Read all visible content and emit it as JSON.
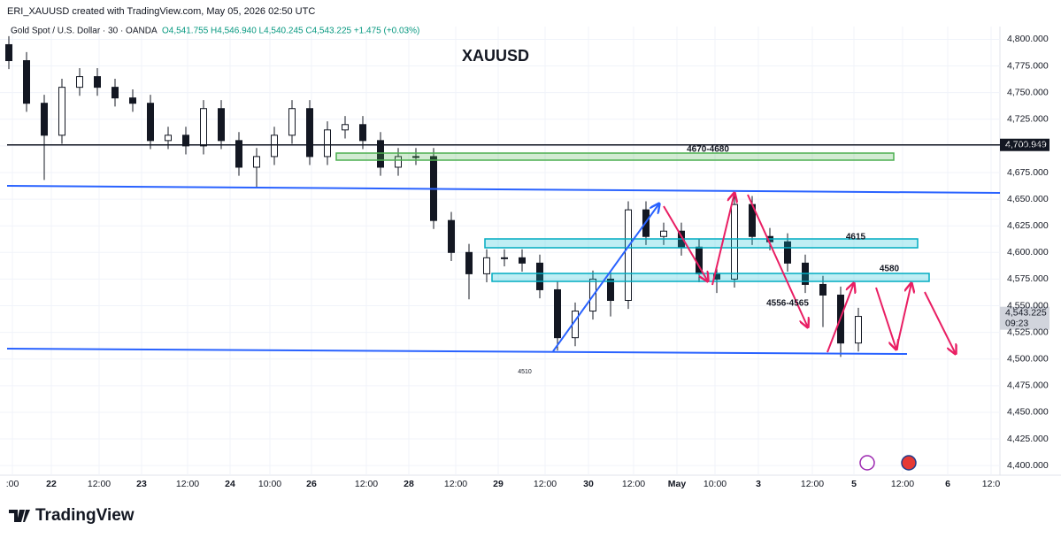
{
  "chart_data": {
    "type": "candlestick",
    "title": "XAUUSD",
    "caption": "ERI_XAUUSD created with TradingView.com, May 05, 2026 02:50 UTC",
    "symbol": "Gold Spot / U.S. Dollar · 30 · OANDA",
    "ohlc_legend": "O4,541.755 H4,546.940 L4,540.245 C4,543.225 +1.475 (+0.03%)",
    "brand": "TradingView",
    "annotations": [
      "4670-4680",
      "4615",
      "4580",
      "4556-4565",
      "4510"
    ],
    "x": [
      1,
      3,
      5,
      7,
      9,
      11,
      13,
      15,
      17,
      19,
      21,
      23,
      25,
      27,
      29,
      31,
      33,
      35,
      37,
      39,
      41,
      43,
      45,
      47,
      49,
      51,
      53,
      55,
      57,
      59,
      61,
      63,
      65,
      67,
      69,
      71,
      73,
      75,
      77,
      79,
      81,
      83,
      85,
      87,
      89,
      91,
      93,
      95,
      97
    ],
    "open": [
      4795,
      4780,
      4740,
      4710,
      4755,
      4765,
      4755,
      4745,
      4740,
      4705,
      4710,
      4700,
      4735,
      4705,
      4680,
      4690,
      4710,
      4735,
      4690,
      4715,
      4720,
      4705,
      4680,
      4690,
      4690,
      4630,
      4600,
      4580,
      4595,
      4595,
      4590,
      4565,
      4520,
      4545,
      4575,
      4555,
      4640,
      4615,
      4620,
      4605,
      4580,
      4575,
      4645,
      4615,
      4610,
      4590,
      4570,
      4560,
      4515
    ],
    "high": [
      4803,
      4788,
      4748,
      4763,
      4773,
      4773,
      4763,
      4753,
      4748,
      4718,
      4718,
      4743,
      4743,
      4713,
      4698,
      4718,
      4743,
      4743,
      4723,
      4728,
      4728,
      4713,
      4698,
      4698,
      4698,
      4638,
      4608,
      4603,
      4603,
      4603,
      4598,
      4573,
      4553,
      4583,
      4583,
      4648,
      4648,
      4628,
      4628,
      4613,
      4588,
      4653,
      4653,
      4623,
      4618,
      4598,
      4578,
      4568,
      4548
    ],
    "low": [
      4772,
      4732,
      4668,
      4702,
      4747,
      4747,
      4737,
      4732,
      4697,
      4697,
      4692,
      4692,
      4697,
      4672,
      4660,
      4682,
      4702,
      4682,
      4682,
      4707,
      4697,
      4672,
      4672,
      4682,
      4622,
      4592,
      4556,
      4572,
      4587,
      4582,
      4557,
      4508,
      4512,
      4537,
      4540,
      4547,
      4607,
      4607,
      4597,
      4572,
      4562,
      4567,
      4607,
      4602,
      4582,
      4562,
      4530,
      4502,
      4507
    ],
    "close": [
      4780,
      4740,
      4710,
      4755,
      4765,
      4755,
      4745,
      4740,
      4705,
      4710,
      4700,
      4735,
      4705,
      4680,
      4690,
      4710,
      4735,
      4690,
      4715,
      4720,
      4705,
      4680,
      4690,
      4690,
      4630,
      4600,
      4580,
      4595,
      4595,
      4590,
      4565,
      4520,
      4545,
      4575,
      4555,
      4640,
      4615,
      4620,
      4605,
      4580,
      4575,
      4645,
      4615,
      4610,
      4590,
      4570,
      4560,
      4515,
      4540
    ],
    "up_color": "#ffffff",
    "down_color": "#131722",
    "xlim": [
      0,
      113
    ],
    "ylim": [
      4391,
      4812
    ],
    "grid": true,
    "xticks": [
      {
        "value": 1.4,
        "label": ":00"
      },
      {
        "value": 5.8,
        "label": "22"
      },
      {
        "value": 11.2,
        "label": "12:00"
      },
      {
        "value": 16,
        "label": "23"
      },
      {
        "value": 21.2,
        "label": "12:00"
      },
      {
        "value": 26,
        "label": "24"
      },
      {
        "value": 30.5,
        "label": "10:00"
      },
      {
        "value": 35.2,
        "label": "26"
      },
      {
        "value": 41.4,
        "label": "12:00"
      },
      {
        "value": 46.2,
        "label": "28"
      },
      {
        "value": 51.5,
        "label": "12:00"
      },
      {
        "value": 56.3,
        "label": "29"
      },
      {
        "value": 61.6,
        "label": "12:00"
      },
      {
        "value": 66.5,
        "label": "30"
      },
      {
        "value": 71.6,
        "label": "12:00"
      },
      {
        "value": 76.5,
        "label": "May"
      },
      {
        "value": 80.8,
        "label": "10:00"
      },
      {
        "value": 85.7,
        "label": "3"
      },
      {
        "value": 91.8,
        "label": "12:00"
      },
      {
        "value": 96.5,
        "label": "5"
      },
      {
        "value": 102,
        "label": "12:00"
      },
      {
        "value": 107.1,
        "label": "6"
      },
      {
        "value": 112,
        "label": "12:0"
      }
    ],
    "yticks": [
      {
        "value": 4400,
        "label": "4,400.000"
      },
      {
        "value": 4425,
        "label": "4,425.000"
      },
      {
        "value": 4450,
        "label": "4,450.000"
      },
      {
        "value": 4475,
        "label": "4,475.000"
      },
      {
        "value": 4500,
        "label": "4,500.000"
      },
      {
        "value": 4525,
        "label": "4,525.000"
      },
      {
        "value": 4550,
        "label": "4,550.000"
      },
      {
        "value": 4575,
        "label": "4,575.000"
      },
      {
        "value": 4600,
        "label": "4,600.000"
      },
      {
        "value": 4625,
        "label": "4,625.000"
      },
      {
        "value": 4650,
        "label": "4,650.000"
      },
      {
        "value": 4675,
        "label": "4,675.000"
      },
      {
        "value": 4700,
        "label": "4,700.000"
      },
      {
        "value": 4725,
        "label": "4,725.000"
      },
      {
        "value": 4750,
        "label": "4,750.000"
      },
      {
        "value": 4775,
        "label": "4,775.000"
      },
      {
        "value": 4800,
        "label": "4,800.000"
      }
    ],
    "price_tags": [
      {
        "value": 4700.949,
        "label": "4,700.949",
        "color": "#131722"
      },
      {
        "value": 4543.225,
        "label": "4,543.225",
        "sublabel": "09:23",
        "color": "#d1d4dc"
      }
    ]
  }
}
